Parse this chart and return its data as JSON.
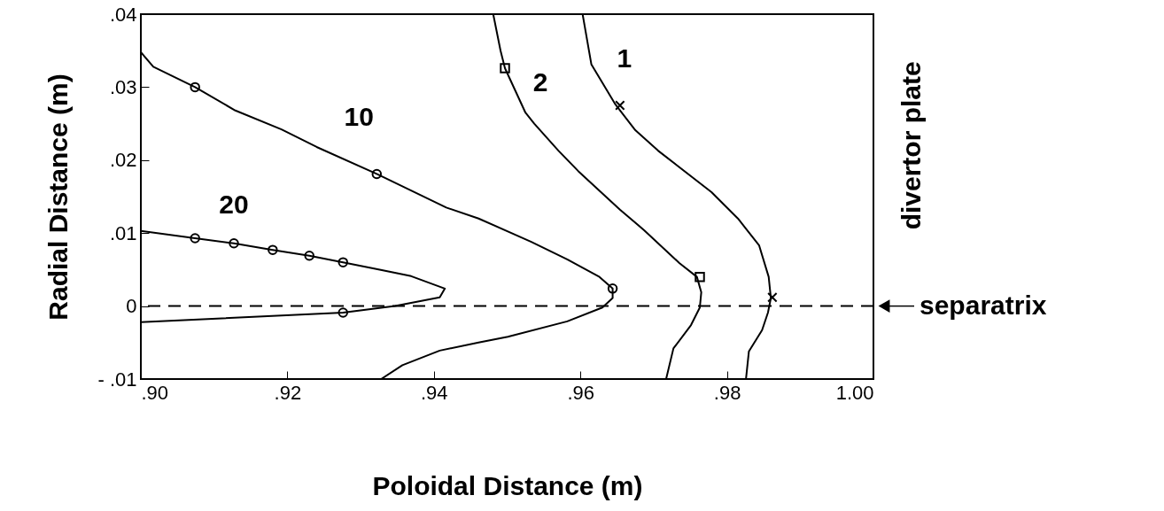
{
  "chart_data": {
    "type": "line",
    "xlabel": "Poloidal Distance (m)",
    "ylabel": "Radial Distance (m)",
    "xlim": [
      0.9,
      1.0
    ],
    "xticks": [
      {
        "value": 0.9,
        "label": ".90"
      },
      {
        "value": 0.92,
        "label": ".92"
      },
      {
        "value": 0.94,
        "label": ".94"
      },
      {
        "value": 0.96,
        "label": ".96"
      },
      {
        "value": 0.98,
        "label": ".98"
      },
      {
        "value": 1.0,
        "label": "1.00"
      }
    ],
    "ylim": [
      -0.01,
      0.04
    ],
    "yticks": [
      {
        "value": -0.01,
        "label": "- .01"
      },
      0,
      {
        "value": 0.01,
        "label": ".01"
      },
      {
        "value": 0.02,
        "label": ".02"
      },
      {
        "value": 0.03,
        "label": ".03"
      },
      {
        "value": 0.04,
        "label": ".04"
      }
    ],
    "grid": false,
    "series": [
      {
        "type": "line",
        "name": "20",
        "color": "#000000",
        "x": [
          0.9,
          0.9074,
          0.9127,
          0.918,
          0.923,
          0.9276,
          0.9326,
          0.9369,
          0.9415,
          0.9408,
          0.9347,
          0.9276,
          0.9
        ],
        "values": [
          0.0103,
          0.0093,
          0.0086,
          0.0077,
          0.0069,
          0.006,
          0.005,
          0.0041,
          0.0024,
          0.0012,
          0.0,
          -0.0009,
          -0.0022
        ]
      },
      {
        "type": "line",
        "name": "10",
        "color": "#000000",
        "x": [
          0.9,
          0.9017,
          0.9074,
          0.9129,
          0.9192,
          0.924,
          0.9322,
          0.9417,
          0.9461,
          0.9533,
          0.9582,
          0.9626,
          0.9644,
          0.9644,
          0.963,
          0.9582,
          0.9501,
          0.9461,
          0.9408,
          0.9357,
          0.9328
        ],
        "values": [
          0.0348,
          0.0328,
          0.03,
          0.0268,
          0.0242,
          0.0218,
          0.0181,
          0.0135,
          0.012,
          0.0088,
          0.0064,
          0.004,
          0.0024,
          0.0011,
          -0.0002,
          -0.0021,
          -0.0042,
          -0.005,
          -0.0061,
          -0.0081,
          -0.01
        ]
      },
      {
        "type": "line",
        "name": "2",
        "color": "#000000",
        "x": [
          0.9481,
          0.9491,
          0.9497,
          0.9525,
          0.9537,
          0.957,
          0.9597,
          0.9654,
          0.9687,
          0.9735,
          0.9759,
          0.9765,
          0.9763,
          0.9751,
          0.9727,
          0.9717
        ],
        "values": [
          0.04,
          0.035,
          0.0326,
          0.0265,
          0.025,
          0.0213,
          0.0185,
          0.0132,
          0.0104,
          0.0059,
          0.004,
          0.0019,
          -0.0002,
          -0.0026,
          -0.0058,
          -0.01
        ]
      },
      {
        "type": "line",
        "name": "1",
        "color": "#000000",
        "x": [
          0.9603,
          0.9615,
          0.9648,
          0.9675,
          0.9706,
          0.9779,
          0.9815,
          0.9844,
          0.9857,
          0.986,
          0.9856,
          0.9848,
          0.983,
          0.9826
        ],
        "values": [
          0.04,
          0.0331,
          0.0276,
          0.0241,
          0.0213,
          0.0156,
          0.012,
          0.0083,
          0.004,
          0.0011,
          -0.0009,
          -0.0033,
          -0.0062,
          -0.01
        ]
      },
      {
        "type": "scatter",
        "marker": "circle",
        "color": "#000000",
        "x": [
          0.9074,
          0.9127,
          0.918,
          0.923,
          0.9276,
          0.9276
        ],
        "values": [
          0.0093,
          0.0086,
          0.0077,
          0.0069,
          0.006,
          -0.0009
        ]
      },
      {
        "type": "scatter",
        "marker": "circle",
        "color": "#000000",
        "x": [
          0.9074,
          0.9322,
          0.9644
        ],
        "values": [
          0.03,
          0.0181,
          0.0024
        ]
      },
      {
        "type": "scatter",
        "marker": "square",
        "color": "#000000",
        "x": [
          0.9497,
          0.9763
        ],
        "values": [
          0.0326,
          0.004
        ]
      },
      {
        "type": "scatter",
        "marker": "cross",
        "color": "#000000",
        "x": [
          0.9654,
          0.9862
        ],
        "values": [
          0.0275,
          0.0012
        ]
      }
    ],
    "ref_lines": [
      {
        "axis": "y",
        "value": 0,
        "label": "separatrix",
        "line_style": "dashed"
      }
    ],
    "annotations": [
      "divertor plate"
    ]
  }
}
